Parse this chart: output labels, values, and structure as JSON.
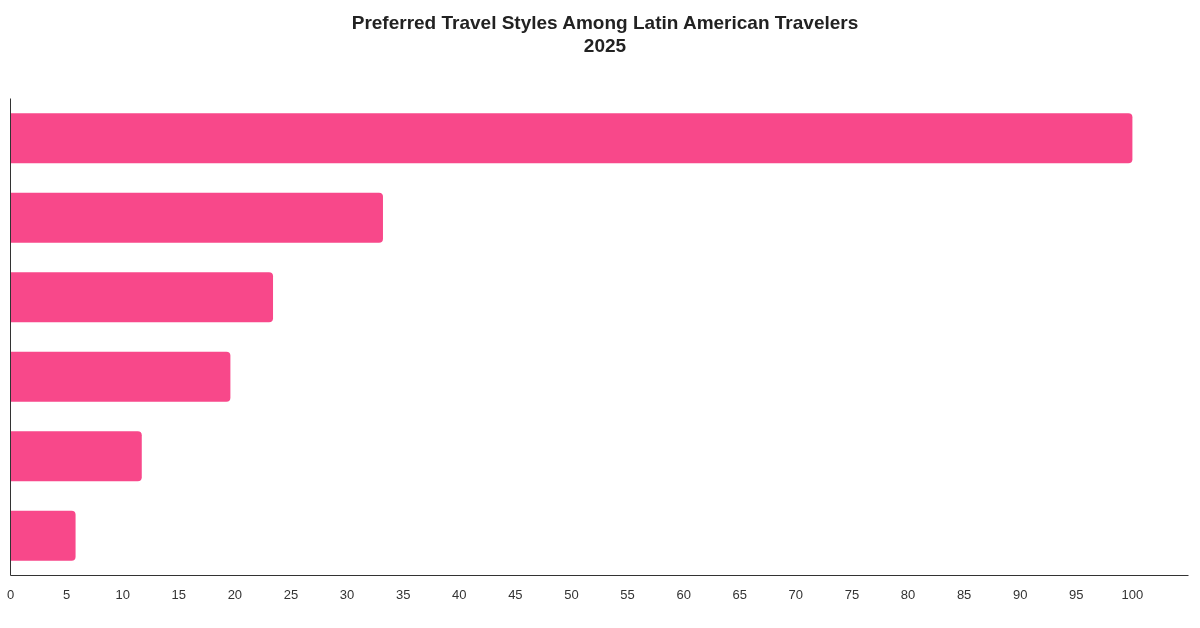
{
  "chart_data": {
    "type": "bar",
    "orientation": "horizontal",
    "title": "Preferred Travel Styles Among Latin American Travelers\n2025",
    "categories": [
      null,
      null,
      null,
      null,
      null,
      null
    ],
    "values": [
      100,
      33.2,
      23.4,
      19.6,
      11.7,
      5.8
    ],
    "color": "#f8488a",
    "xlim": [
      0,
      105
    ],
    "xticks": [
      0,
      5,
      10,
      15,
      20,
      25,
      30,
      35,
      40,
      45,
      50,
      55,
      60,
      65,
      70,
      75,
      80,
      85,
      90,
      95,
      100
    ]
  }
}
